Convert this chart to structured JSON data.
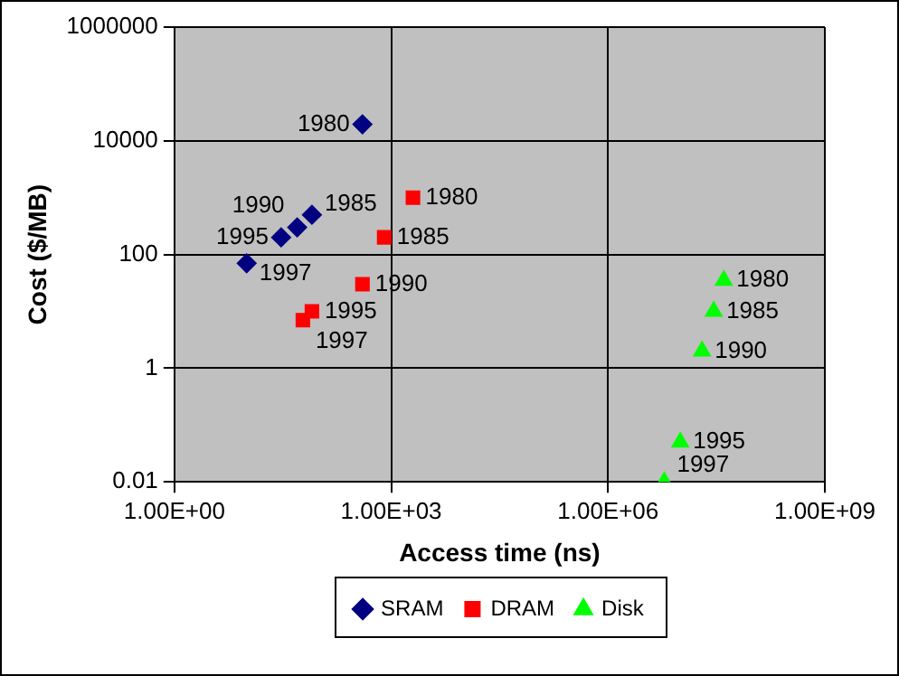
{
  "chart_data": {
    "type": "scatter",
    "xlabel": "Access time (ns)",
    "ylabel": "Cost ($/MB)",
    "log": "xy",
    "grid": true,
    "legend": "bottom",
    "xlim": [
      1,
      1000000000
    ],
    "xticks": [
      {
        "value": 1,
        "label": "1.00E+00"
      },
      {
        "value": 1000,
        "label": "1.00E+03"
      },
      {
        "value": 1000000,
        "label": "1.00E+06"
      },
      {
        "value": 1000000000,
        "label": "1.00E+09"
      }
    ],
    "ylim": [
      0.01,
      1000000
    ],
    "yticks": [
      0.01,
      1,
      100,
      10000,
      1000000
    ],
    "series": [
      {
        "name": "SRAM",
        "color": "#000080",
        "marker": "diamond",
        "x": [
          400,
          80,
          50,
          30,
          10
        ],
        "values": [
          19500,
          500,
          300,
          200,
          70
        ]
      },
      {
        "name": "DRAM",
        "color": "#ff0000",
        "marker": "square",
        "x": [
          2000,
          800,
          400,
          80,
          60
        ],
        "values": [
          1000,
          200,
          30,
          10,
          7
        ]
      },
      {
        "name": "Disk",
        "color": "#00ff00",
        "marker": "triangle",
        "x": [
          40000000,
          29000000,
          20000000,
          10000000,
          6000000
        ],
        "values": [
          35,
          10,
          2,
          0.05,
          0.01
        ]
      }
    ],
    "annotations": [
      {
        "text": "1980",
        "x": 400,
        "y": 19500
      },
      {
        "text": "1985",
        "x": 80,
        "y": 500
      },
      {
        "text": "1990",
        "x": 50,
        "y": 300
      },
      {
        "text": "1995",
        "x": 30,
        "y": 200
      },
      {
        "text": "1997",
        "x": 10,
        "y": 70
      },
      {
        "text": "1980",
        "x": 2000,
        "y": 1000
      },
      {
        "text": "1985",
        "x": 800,
        "y": 200
      },
      {
        "text": "1990",
        "x": 400,
        "y": 30
      },
      {
        "text": "1995",
        "x": 80,
        "y": 10
      },
      {
        "text": "1997",
        "x": 60,
        "y": 7
      },
      {
        "text": "1980",
        "x": 40000000,
        "y": 35
      },
      {
        "text": "1985",
        "x": 29000000,
        "y": 10
      },
      {
        "text": "1990",
        "x": 20000000,
        "y": 2
      },
      {
        "text": "1995",
        "x": 10000000,
        "y": 0.05
      },
      {
        "text": "1997",
        "x": 6000000,
        "y": 0.01
      }
    ]
  }
}
